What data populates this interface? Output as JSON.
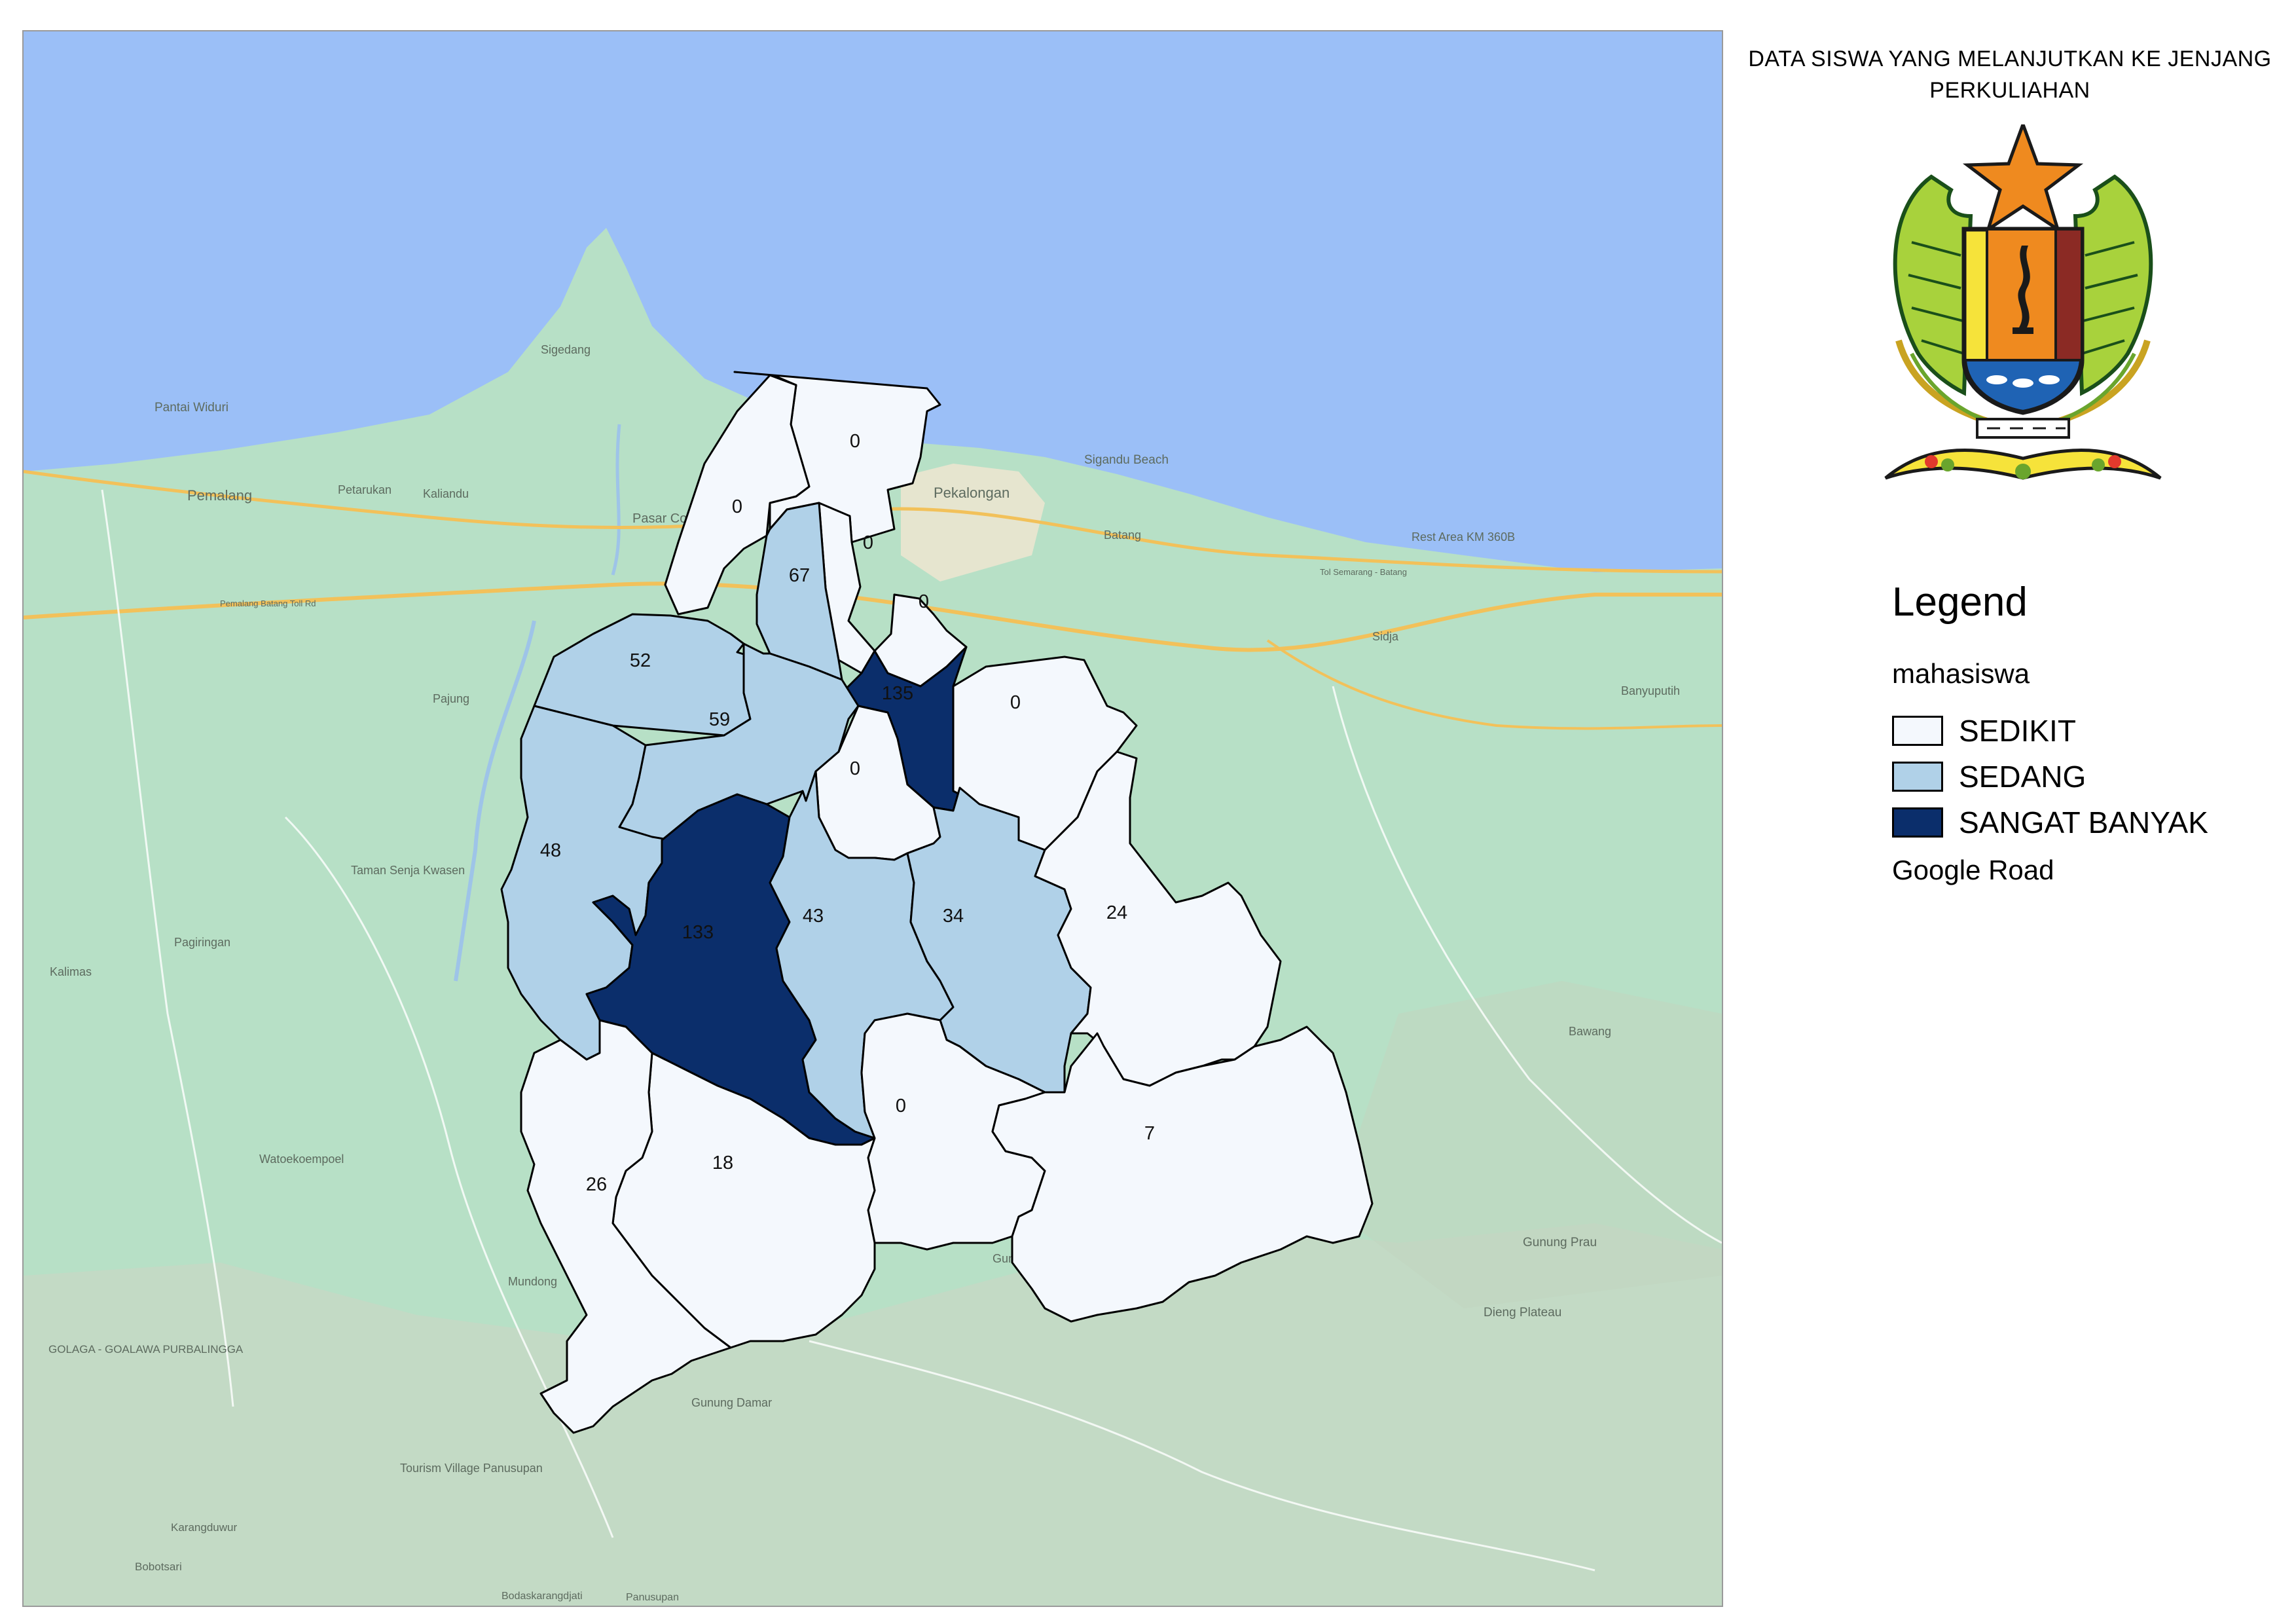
{
  "title": "DATA SISWA YANG MELANJUTKAN KE JENJANG PERKULIAHAN",
  "legend": {
    "title": "Legend",
    "layer_name": "mahasiswa",
    "classes": [
      {
        "label": "SEDIKIT",
        "color": "#f4f8fd"
      },
      {
        "label": "SEDANG",
        "color": "#b0d1e8"
      },
      {
        "label": "SANGAT BANYAK",
        "color": "#0b2e6b"
      }
    ],
    "basemap_label": "Google Road"
  },
  "colors": {
    "sea": "#9bbff7",
    "land": "#b7e0c6",
    "road": "#f2c15a",
    "boundary": "#000000"
  },
  "districts": [
    {
      "value": "0",
      "class": "SEDIKIT"
    },
    {
      "value": "0",
      "class": "SEDIKIT"
    },
    {
      "value": "0",
      "class": "SEDIKIT"
    },
    {
      "value": "67",
      "class": "SEDANG"
    },
    {
      "value": "0",
      "class": "SEDIKIT"
    },
    {
      "value": "52",
      "class": "SEDANG"
    },
    {
      "value": "135",
      "class": "SANGAT BANYAK"
    },
    {
      "value": "0",
      "class": "SEDIKIT"
    },
    {
      "value": "59",
      "class": "SEDANG"
    },
    {
      "value": "0",
      "class": "SEDIKIT"
    },
    {
      "value": "48",
      "class": "SEDANG"
    },
    {
      "value": "133",
      "class": "SANGAT BANYAK"
    },
    {
      "value": "43",
      "class": "SEDANG"
    },
    {
      "value": "34",
      "class": "SEDANG"
    },
    {
      "value": "24",
      "class": "SEDIKIT"
    },
    {
      "value": "0",
      "class": "SEDIKIT"
    },
    {
      "value": "7",
      "class": "SEDIKIT"
    },
    {
      "value": "18",
      "class": "SEDIKIT"
    },
    {
      "value": "26",
      "class": "SEDIKIT"
    }
  ],
  "basemap_places": [
    "Pantai Widuri",
    "Sigedang",
    "Pemalang",
    "Petarukan",
    "Kaliandu",
    "Pasar Comal",
    "Pekalongan",
    "Sigandu Beach",
    "Batang",
    "Rest Area KM 360B",
    "Sidja",
    "Banyuputih",
    "Pajung",
    "Taman Senja Kwasen",
    "Pagiringan",
    "Kalimas",
    "Watoekoempoel",
    "Bawang",
    "Gunung Prau",
    "Gunung Bromo",
    "Dieng Plateau",
    "Mundong",
    "GOLAGA - GOALAWA PURBALINGGA",
    "Gunung Damar",
    "Tourism Village Panusupan",
    "Karangduwur",
    "Bobotsari",
    "Bodaskarangdjati",
    "Panusupan",
    "Pemalang Batang Toll Rd",
    "Tol Semarang - Batang"
  ]
}
